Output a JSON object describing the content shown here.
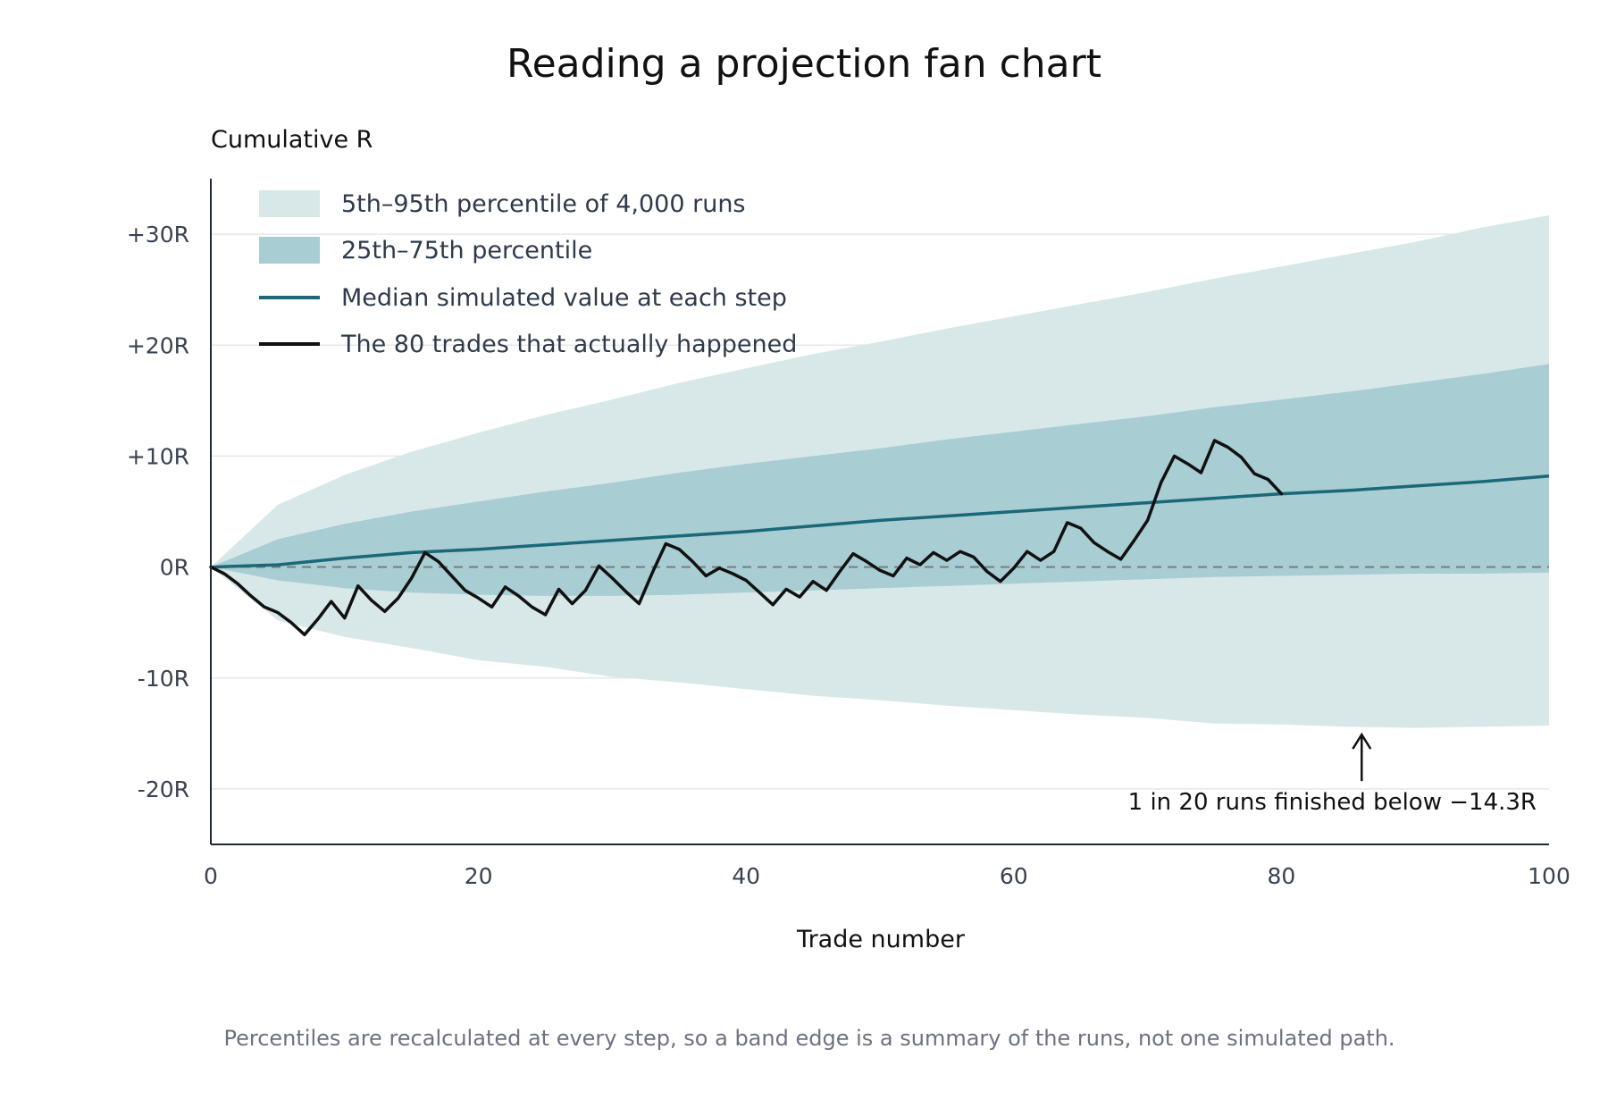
{
  "chart_data": {
    "type": "area",
    "title": "Reading a projection fan chart",
    "ylabel": "Cumulative R",
    "xlabel": "Trade number",
    "xlim": [
      0,
      100
    ],
    "ylim": [
      -25,
      35
    ],
    "xticks": [
      0,
      20,
      40,
      60,
      80,
      100
    ],
    "xtick_labels": [
      "0",
      "20",
      "40",
      "60",
      "80",
      "100"
    ],
    "yticks": [
      30,
      20,
      10,
      0,
      -10,
      -20
    ],
    "ytick_labels": [
      "+30R",
      "+20R",
      "+10R",
      "0R",
      "-10R",
      "-20R"
    ],
    "grid": "horizontal",
    "legend_position": "top-left",
    "zero_line": "dashed",
    "colors": {
      "outer_band": "#d8e8e9",
      "inner_band": "#a8cdd3",
      "median": "#1b6878",
      "actual": "#111111",
      "grid": "#e5e7eb",
      "axis": "#1f2937",
      "zero": "#777777"
    },
    "x": [
      0,
      5,
      10,
      15,
      20,
      25,
      30,
      35,
      40,
      45,
      50,
      55,
      60,
      65,
      70,
      75,
      80,
      85,
      90,
      95,
      100
    ],
    "series": [
      {
        "name": "5th–95th percentile of 4,000 runs",
        "kind": "band",
        "lower": [
          0,
          -4.8,
          -6.3,
          -7.3,
          -8.4,
          -9.0,
          -9.9,
          -10.4,
          -11.0,
          -11.6,
          -12.0,
          -12.5,
          -12.9,
          -13.3,
          -13.6,
          -14.1,
          -14.2,
          -14.4,
          -14.5,
          -14.4,
          -14.3
        ],
        "upper": [
          0,
          5.6,
          8.3,
          10.4,
          12.1,
          13.7,
          15.1,
          16.6,
          17.9,
          19.2,
          20.3,
          21.5,
          22.6,
          23.7,
          24.8,
          26.0,
          27.1,
          28.2,
          29.3,
          30.6,
          31.7
        ]
      },
      {
        "name": "25th–75th percentile",
        "kind": "band",
        "lower": [
          0,
          -1.2,
          -1.9,
          -2.3,
          -2.5,
          -2.6,
          -2.6,
          -2.5,
          -2.3,
          -2.1,
          -1.9,
          -1.7,
          -1.5,
          -1.3,
          -1.1,
          -0.9,
          -0.8,
          -0.7,
          -0.6,
          -0.6,
          -0.5
        ],
        "upper": [
          0,
          2.5,
          3.9,
          5.0,
          5.9,
          6.8,
          7.6,
          8.5,
          9.3,
          10.0,
          10.7,
          11.5,
          12.2,
          12.9,
          13.6,
          14.4,
          15.1,
          15.8,
          16.6,
          17.4,
          18.3
        ]
      },
      {
        "name": "Median simulated value at each step",
        "kind": "line",
        "values": [
          0,
          0.2,
          0.8,
          1.3,
          1.6,
          2.0,
          2.4,
          2.8,
          3.2,
          3.7,
          4.2,
          4.6,
          5.0,
          5.4,
          5.8,
          6.2,
          6.6,
          6.9,
          7.3,
          7.7,
          8.2
        ]
      },
      {
        "name": "The 80 trades that actually happened",
        "kind": "line",
        "x": [
          0,
          1,
          2,
          3,
          4,
          5,
          6,
          7,
          8,
          9,
          10,
          11,
          12,
          13,
          14,
          15,
          16,
          17,
          18,
          19,
          20,
          21,
          22,
          23,
          24,
          25,
          26,
          27,
          28,
          29,
          30,
          31,
          32,
          33,
          34,
          35,
          36,
          37,
          38,
          39,
          40,
          41,
          42,
          43,
          44,
          45,
          46,
          47,
          48,
          49,
          50,
          51,
          52,
          53,
          54,
          55,
          56,
          57,
          58,
          59,
          60,
          61,
          62,
          63,
          64,
          65,
          66,
          67,
          68,
          69,
          70,
          71,
          72,
          73,
          74,
          75,
          76,
          77,
          78,
          79,
          80
        ],
        "values": [
          0,
          -0.6,
          -1.5,
          -2.6,
          -3.6,
          -4.1,
          -5.0,
          -6.1,
          -4.7,
          -3.1,
          -4.6,
          -1.7,
          -3.0,
          -4.0,
          -2.8,
          -1.0,
          1.3,
          0.5,
          -0.8,
          -2.1,
          -2.8,
          -3.6,
          -1.8,
          -2.6,
          -3.6,
          -4.3,
          -2.0,
          -3.3,
          -2.1,
          0.1,
          -1.0,
          -2.2,
          -3.3,
          -0.5,
          2.1,
          1.6,
          0.5,
          -0.8,
          -0.1,
          -0.6,
          -1.2,
          -2.3,
          -3.4,
          -2.0,
          -2.7,
          -1.3,
          -2.1,
          -0.4,
          1.2,
          0.5,
          -0.3,
          -0.8,
          0.8,
          0.2,
          1.3,
          0.6,
          1.4,
          0.9,
          -0.4,
          -1.3,
          -0.1,
          1.4,
          0.6,
          1.4,
          4.0,
          3.5,
          2.2,
          1.4,
          0.7,
          2.4,
          4.2,
          7.6,
          10.0,
          9.3,
          8.5,
          11.4,
          10.8,
          9.9,
          8.4,
          7.9,
          6.6
        ]
      }
    ],
    "annotation": {
      "text": "1 in 20 runs finished below −14.3R",
      "points_to": {
        "x": 86,
        "y": -14.3
      }
    },
    "caption": "Percentiles are recalculated at every step, so a band edge is a summary of the runs, not one simulated path."
  }
}
